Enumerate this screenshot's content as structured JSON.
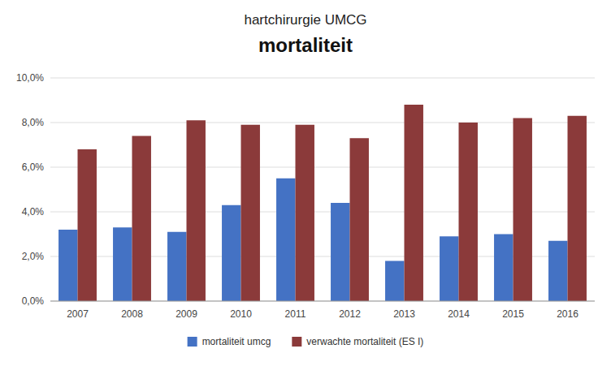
{
  "chart_data": {
    "type": "bar",
    "title": "hartchirurgie UMCG",
    "subtitle": "mortaliteit",
    "categories": [
      "2007",
      "2008",
      "2009",
      "2010",
      "2011",
      "2012",
      "2013",
      "2014",
      "2015",
      "2016"
    ],
    "series": [
      {
        "name": "mortaliteit umcg",
        "color": "#4472C4",
        "values": [
          0.032,
          0.033,
          0.031,
          0.043,
          0.055,
          0.044,
          0.018,
          0.029,
          0.03,
          0.027
        ]
      },
      {
        "name": "verwachte mortaliteit (ES I)",
        "color": "#8B3A3A",
        "values": [
          0.068,
          0.074,
          0.081,
          0.079,
          0.079,
          0.073,
          0.088,
          0.08,
          0.082,
          0.083
        ]
      }
    ],
    "ylim": [
      0,
      0.1
    ],
    "yticks": [
      {
        "value": 0.0,
        "label": "0,0%"
      },
      {
        "value": 0.02,
        "label": "2,0%"
      },
      {
        "value": 0.04,
        "label": "4,0%"
      },
      {
        "value": 0.06,
        "label": "6,0%"
      },
      {
        "value": 0.08,
        "label": "8,0%"
      },
      {
        "value": 0.1,
        "label": "10,0%"
      }
    ],
    "grid": true,
    "legend": "bottom"
  }
}
